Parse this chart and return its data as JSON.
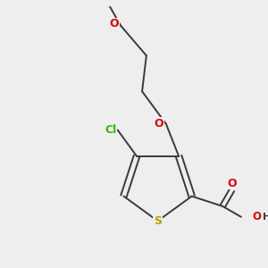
{
  "background_color": "#eeeeee",
  "bond_color": "#3a3a3a",
  "bond_lw": 1.4,
  "atom_colors": {
    "S": "#b8a000",
    "O": "#dd0000",
    "Cl": "#33bb00",
    "default": "#3a3a3a"
  },
  "figsize": [
    3.0,
    3.0
  ],
  "dpi": 100
}
